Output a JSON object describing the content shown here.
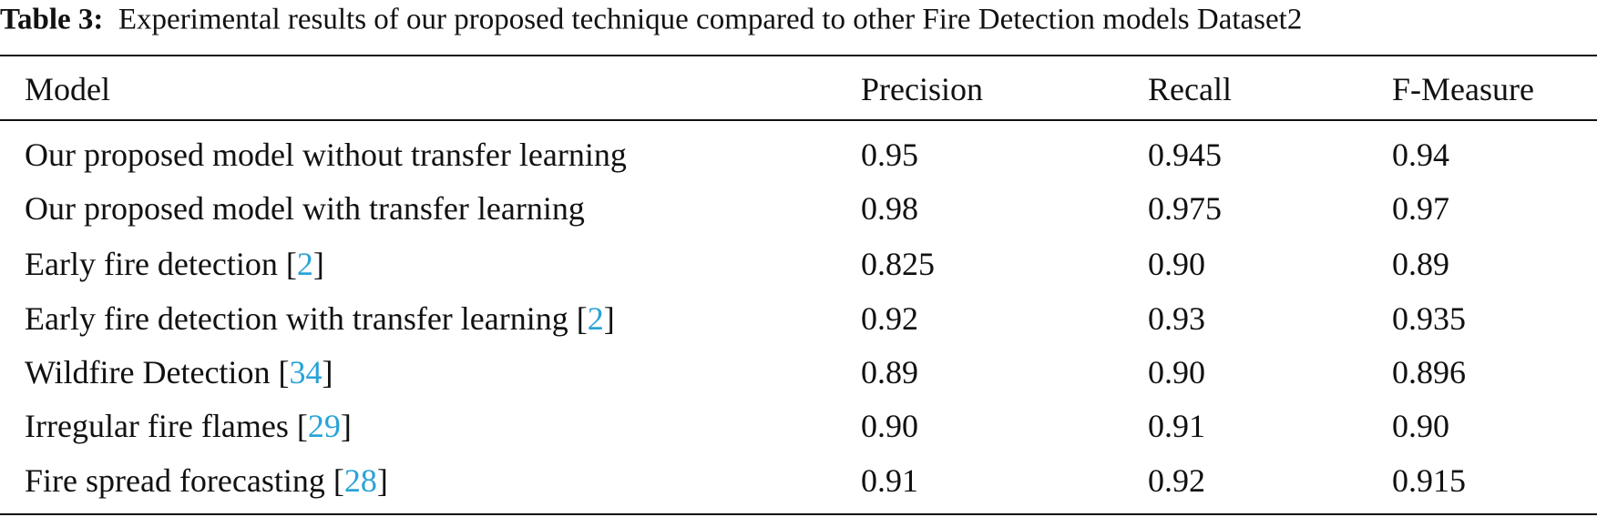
{
  "caption": {
    "label": "Table 3:",
    "text": "Experimental results of our proposed technique compared to other Fire Detection models Dataset2"
  },
  "table": {
    "header": [
      "Model",
      "Precision",
      "Recall",
      "F-Measure"
    ],
    "rows": [
      {
        "model": [
          "Our proposed model without transfer learning"
        ],
        "cells": [
          "0.95",
          "0.945",
          "0.94"
        ]
      },
      {
        "model": [
          "Our proposed model with transfer learning"
        ],
        "cells": [
          "0.98",
          "0.975",
          "0.97"
        ]
      },
      {
        "model": [
          "Early fire detection [",
          "2",
          "]"
        ],
        "cells": [
          "0.825",
          "0.90",
          "0.89"
        ]
      },
      {
        "model": [
          "Early fire detection with transfer learning [",
          "2",
          "]"
        ],
        "cells": [
          "0.92",
          "0.93",
          "0.935"
        ]
      },
      {
        "model": [
          "Wildfire Detection [",
          "34",
          "]"
        ],
        "cells": [
          "0.89",
          "0.90",
          "0.896"
        ]
      },
      {
        "model": [
          "Irregular fire flames [",
          "29",
          "]"
        ],
        "cells": [
          "0.90",
          "0.91",
          "0.90"
        ]
      },
      {
        "model": [
          "Fire spread forecasting [",
          "28",
          "]"
        ],
        "cells": [
          "0.91",
          "0.92",
          "0.915"
        ]
      }
    ]
  }
}
